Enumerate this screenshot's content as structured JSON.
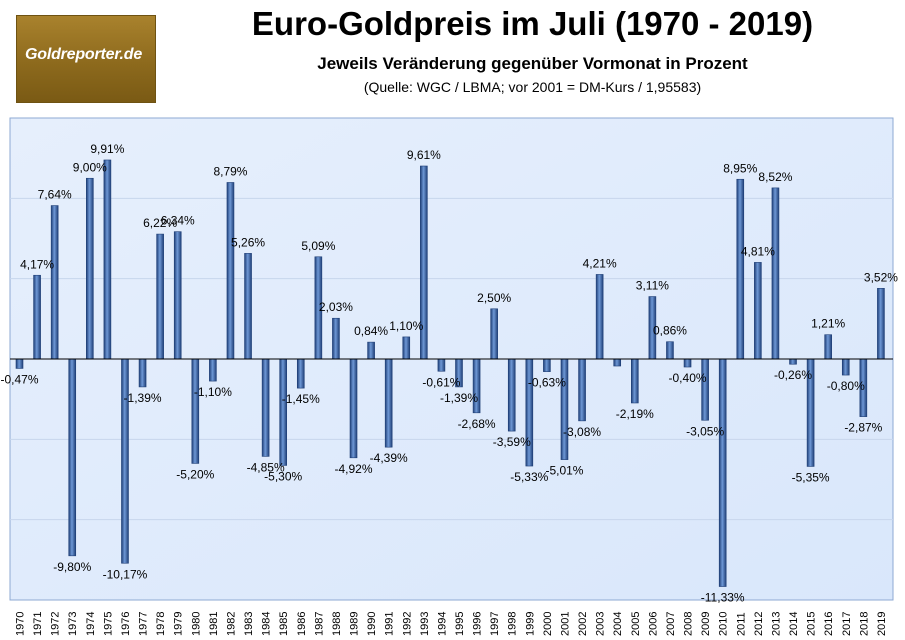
{
  "logo": {
    "text": "Goldreporter.de"
  },
  "header": {
    "title": "Euro-Goldpreis im Juli (1970 - 2019)",
    "subtitle": "Jeweils Veränderung gegenüber Vormonat in Prozent",
    "source": "(Quelle: WGC / LBMA; vor 2001 = DM-Kurs / 1,95583)"
  },
  "colors": {
    "bar": "#3d6db3",
    "bar_dark": "#1f3f77",
    "plot_bg": "#d9e7fb",
    "gridline": "#c7d6ec",
    "border": "#8ea9d3"
  },
  "chart_data": {
    "type": "bar",
    "title": "Euro-Goldpreis im Juli (1970 - 2019)",
    "subtitle": "Jeweils Veränderung gegenüber Vormonat in Prozent",
    "categories": [
      "1970",
      "1971",
      "1972",
      "1973",
      "1974",
      "1975",
      "1976",
      "1977",
      "1978",
      "1979",
      "1980",
      "1981",
      "1982",
      "1983",
      "1984",
      "1985",
      "1986",
      "1987",
      "1988",
      "1989",
      "1990",
      "1991",
      "1992",
      "1993",
      "1994",
      "1995",
      "1996",
      "1997",
      "1998",
      "1999",
      "2000",
      "2001",
      "2002",
      "2003",
      "2004",
      "2005",
      "2006",
      "2007",
      "2008",
      "2009",
      "2010",
      "2011",
      "2012",
      "2013",
      "2014",
      "2015",
      "2016",
      "2017",
      "2018",
      "2019"
    ],
    "values": [
      -0.47,
      4.17,
      7.64,
      -9.8,
      9.0,
      9.91,
      -10.17,
      -1.39,
      6.22,
      6.34,
      -5.2,
      -1.1,
      8.79,
      5.26,
      -4.85,
      -5.3,
      -1.45,
      5.09,
      2.03,
      -4.92,
      0.84,
      -4.39,
      1.1,
      9.61,
      -0.61,
      -1.39,
      -2.68,
      2.5,
      -3.59,
      -5.33,
      -0.63,
      -5.01,
      -3.08,
      4.21,
      -0.35,
      -2.19,
      3.11,
      0.86,
      -0.4,
      -3.05,
      -11.33,
      8.95,
      4.81,
      8.52,
      -0.26,
      -5.35,
      1.21,
      -0.8,
      -2.87,
      3.52
    ],
    "labels": [
      "-0,47%",
      "4,17%",
      "7,64%",
      "-9,80%",
      "9,00%",
      "9,91%",
      "-10,17%",
      "-1,39%",
      "6,22%",
      "6,34%",
      "-5,20%",
      "-1,10%",
      "8,79%",
      "5,26%",
      "-4,85%",
      "-5,30%",
      "-1,45%",
      "5,09%",
      "2,03%",
      "-4,92%",
      "0,84%",
      "-4,39%",
      "1,10%",
      "9,61%",
      "-0,61%",
      "-1,39%",
      "-2,68%",
      "2,50%",
      "-3,59%",
      "-5,33%",
      "-0,63%",
      "-5,01%",
      "-3,08%",
      "4,21%",
      "",
      "-2,19%",
      "3,11%",
      "0,86%",
      "-0,40%",
      "-3,05%",
      "-11,33%",
      "8,95%",
      "4,81%",
      "8,52%",
      "-0,26%",
      "-5,35%",
      "1,21%",
      "-0,80%",
      "-2,87%",
      "3,52%"
    ],
    "ylim": [
      -12,
      12
    ],
    "grid": true,
    "legend": "none"
  }
}
